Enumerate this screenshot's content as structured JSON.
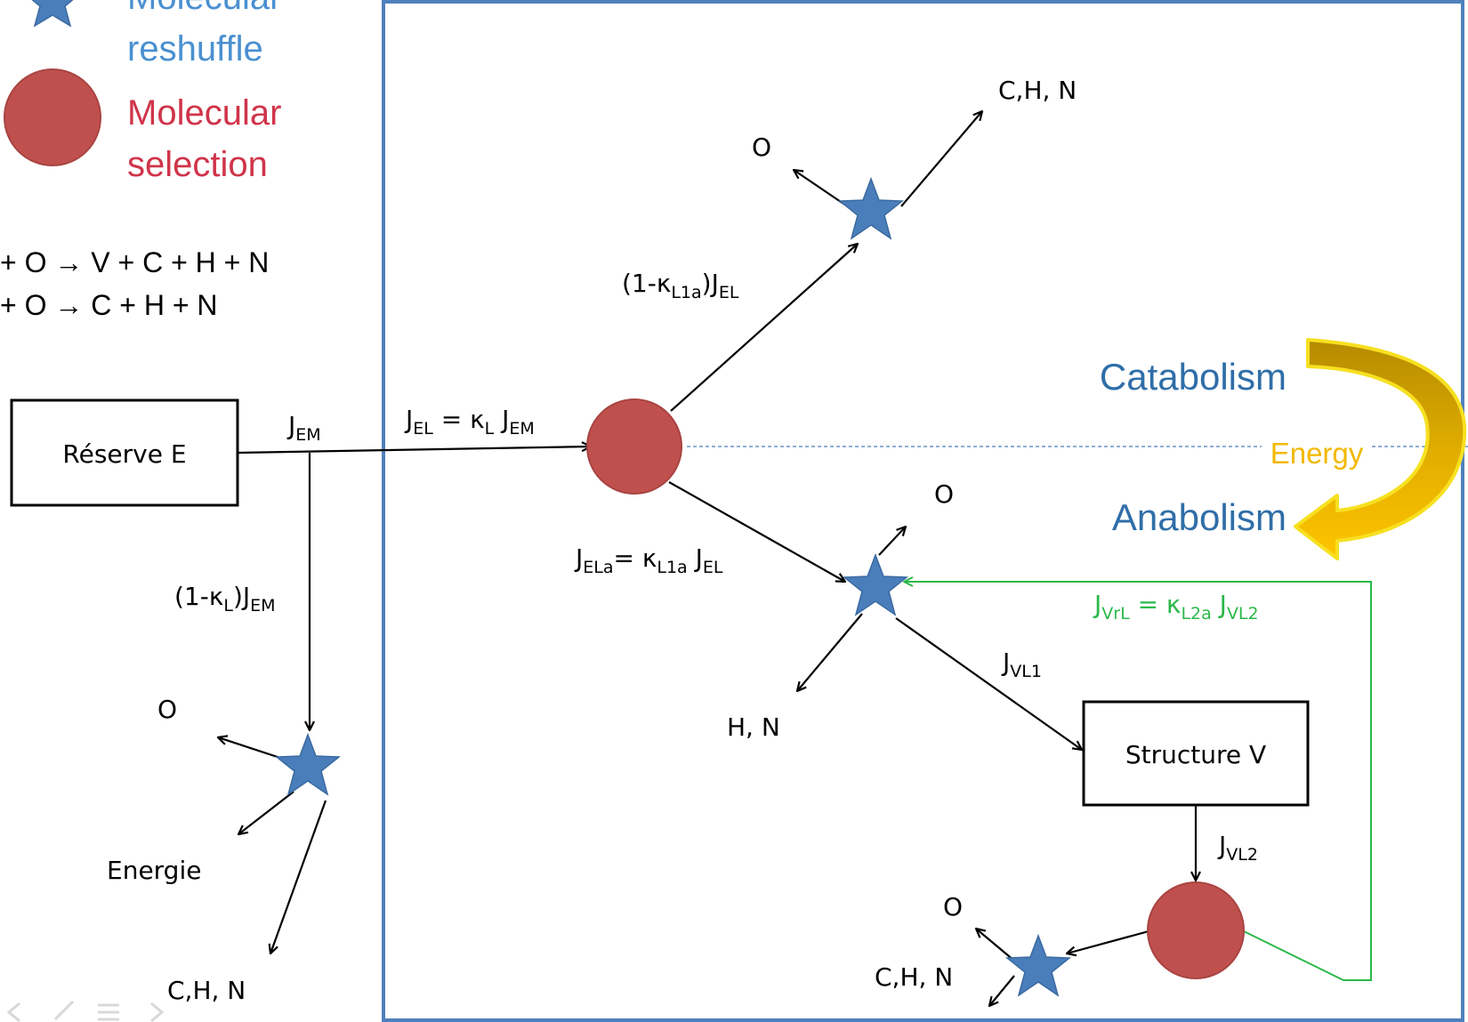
{
  "legend": {
    "reshuffle": "Molecular reshuffle",
    "reshuffle_line1": "Molecular",
    "reshuffle_line2": "reshuffle",
    "selection": "Molecular selection",
    "selection_line1": "Molecular",
    "selection_line2": "selection"
  },
  "equations": [
    "+ O → V + C + H + N",
    "+ O → C + H + N"
  ],
  "boxes": {
    "reserve": "Réserve E",
    "structure": "Structure V"
  },
  "flux": {
    "j_em": {
      "main": "J",
      "sub": "EM"
    },
    "j_el": {
      "p1": "J",
      "s1": "EL",
      "p2": " = κ",
      "s2": "L",
      "p3": " J",
      "s3": "EM"
    },
    "one_minus_kl": {
      "p1": "(1-κ",
      "s1": "L",
      "p2": ")J",
      "s2": "EM"
    },
    "one_minus_kl1a": {
      "p1": "(1-κ",
      "s1": "L1a",
      "p2": ")J",
      "s2": "EL"
    },
    "j_ela": {
      "p1": "J",
      "s1": "ELa",
      "p2": "= κ",
      "s2": "L1a",
      "p3": " J",
      "s3": "EL"
    },
    "j_vl1": {
      "main": "J",
      "sub": "VL1"
    },
    "j_vl2": {
      "main": "J",
      "sub": "VL2"
    },
    "j_vrl": {
      "p1": "J",
      "s1": "VrL",
      "p2": " = κ",
      "s2": "L2a",
      "p3": " J",
      "s3": "VL2"
    }
  },
  "products": {
    "o_top": "O",
    "chn_top": "C,H, N",
    "o_mid": "O",
    "hn_mid": "H, N",
    "o_left": "O",
    "energie": "Energie",
    "chn_left": "C,H, N",
    "o_bottom": "O",
    "chn_bottom": "C,H, N"
  },
  "energy": {
    "catabolism": "Catabolism",
    "energy": "Energy",
    "anabolism": "Anabolism"
  },
  "colors": {
    "star": "#4a7ebb",
    "circle": "#c0504d",
    "frame": "#4f81bd",
    "reshuffle_text": "#4a90d0",
    "selection_text": "#d0344a",
    "catabolism_text": "#2f6ea8",
    "energy_text": "#f2b800",
    "arrow_gold": "#c89a00",
    "green_flux": "#2bb84a"
  }
}
